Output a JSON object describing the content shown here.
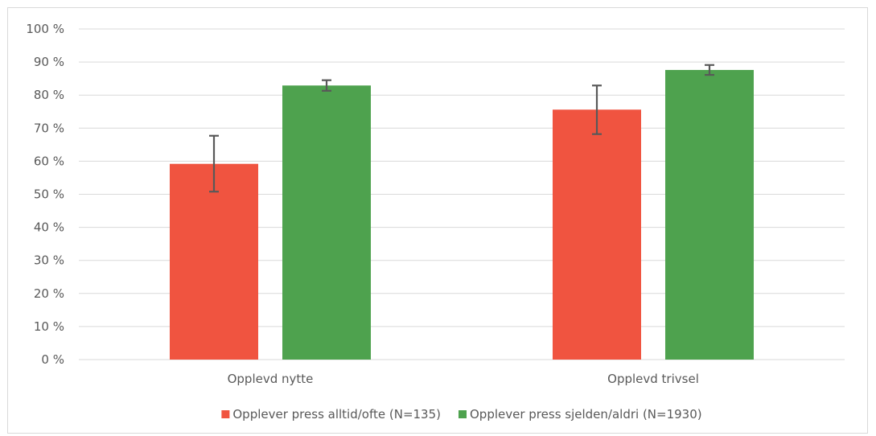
{
  "chart_data": {
    "type": "bar",
    "title": "",
    "xlabel": "",
    "ylabel": "",
    "categories": [
      "Opplevd nytte",
      "Opplevd trivsel"
    ],
    "series": [
      {
        "name": "Opplever press alltid/ofte (N=135)",
        "color": "#f05440",
        "values": [
          59.2,
          75.6
        ],
        "error_low": [
          50.8,
          68.2
        ],
        "error_high": [
          67.7,
          82.9
        ]
      },
      {
        "name": "Opplever press sjelden/aldri (N=1930)",
        "color": "#4ea24e",
        "values": [
          82.9,
          87.6
        ],
        "error_low": [
          81.3,
          86.1
        ],
        "error_high": [
          84.5,
          89.1
        ]
      }
    ],
    "ylim": [
      0,
      100
    ],
    "yticks": [
      0,
      10,
      20,
      30,
      40,
      50,
      60,
      70,
      80,
      90,
      100
    ],
    "ytick_suffix": " %",
    "grid": true,
    "legend": "bottom",
    "gridline_color": "#d9d9d9",
    "errorbar_color": "#595959"
  }
}
